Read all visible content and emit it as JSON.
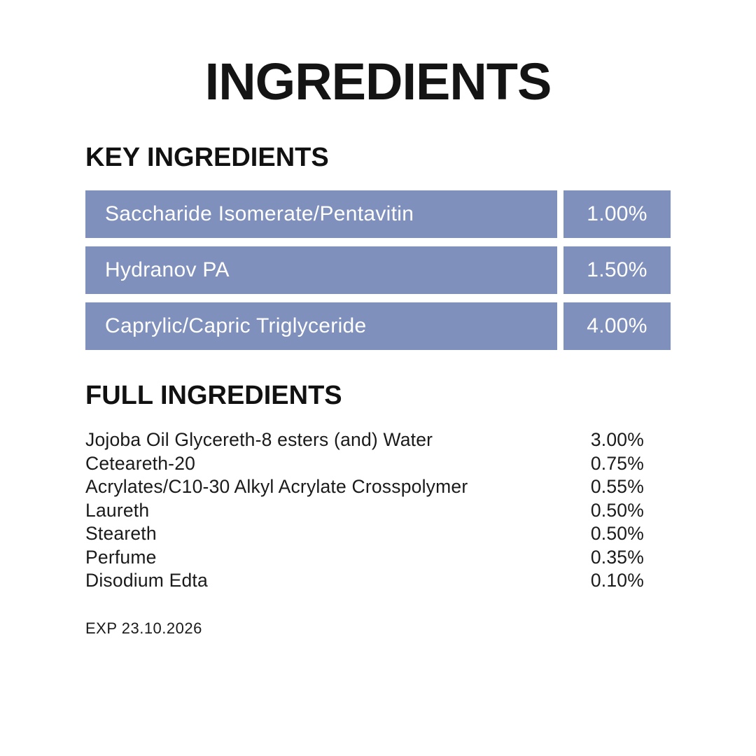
{
  "page": {
    "title": "INGREDIENTS",
    "exp_label": "EXP 23.10.2026"
  },
  "colors": {
    "accent_blue": "#8090BC",
    "text": "#141414",
    "background": "#FFFFFF",
    "row_text": "#FFFFFF"
  },
  "key_ingredients": {
    "heading": "KEY INGREDIENTS",
    "rows": [
      {
        "name": "Saccharide Isomerate/Pentavitin",
        "percent": "1.00%"
      },
      {
        "name": "Hydranov PA",
        "percent": "1.50%"
      },
      {
        "name": "Caprylic/Capric Triglyceride",
        "percent": "4.00%"
      }
    ]
  },
  "full_ingredients": {
    "heading": "FULL INGREDIENTS",
    "rows": [
      {
        "name": "Jojoba Oil Glycereth-8 esters (and) Water",
        "percent": "3.00%"
      },
      {
        "name": "Ceteareth-20",
        "percent": "0.75%"
      },
      {
        "name": "Acrylates/C10-30 Alkyl Acrylate Crosspolymer",
        "percent": "0.55%"
      },
      {
        "name": "Laureth",
        "percent": "0.50%"
      },
      {
        "name": "Steareth",
        "percent": "0.50%"
      },
      {
        "name": "Perfume",
        "percent": "0.35%"
      },
      {
        "name": "Disodium Edta",
        "percent": "0.10%"
      }
    ]
  }
}
